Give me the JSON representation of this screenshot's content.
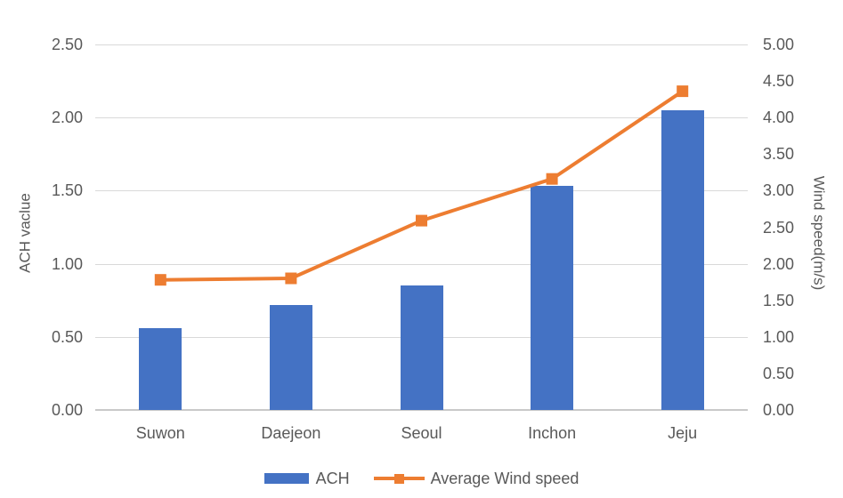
{
  "chart_data": {
    "type": "combo",
    "subtype": "bar+line, dual y-axis",
    "categories": [
      "Suwon",
      "Daejeon",
      "Seoul",
      "Inchon",
      "Jeju"
    ],
    "series": [
      {
        "name": "ACH",
        "type": "bar",
        "axis": "left",
        "color": "#4472C4",
        "values": [
          0.56,
          0.72,
          0.85,
          1.53,
          2.05
        ]
      },
      {
        "name": "Average Wind speed",
        "type": "line",
        "axis": "right",
        "color": "#ED7D31",
        "marker": "square",
        "values": [
          1.78,
          1.8,
          2.59,
          3.16,
          4.36
        ]
      }
    ],
    "left_axis": {
      "title": "ACH vaclue",
      "min": 0,
      "max": 2.5,
      "step": 0.5,
      "tick_format": "0.00"
    },
    "right_axis": {
      "title": "Wind speed(m/s)",
      "min": 0,
      "max": 5.0,
      "step": 0.5,
      "tick_format": "0.00"
    },
    "grid": true,
    "gridlines_follow": "left_axis",
    "legend_position": "bottom",
    "colors": {
      "bar": "#4472C4",
      "line": "#ED7D31",
      "text": "#595959",
      "grid": "#D9D9D9"
    }
  }
}
